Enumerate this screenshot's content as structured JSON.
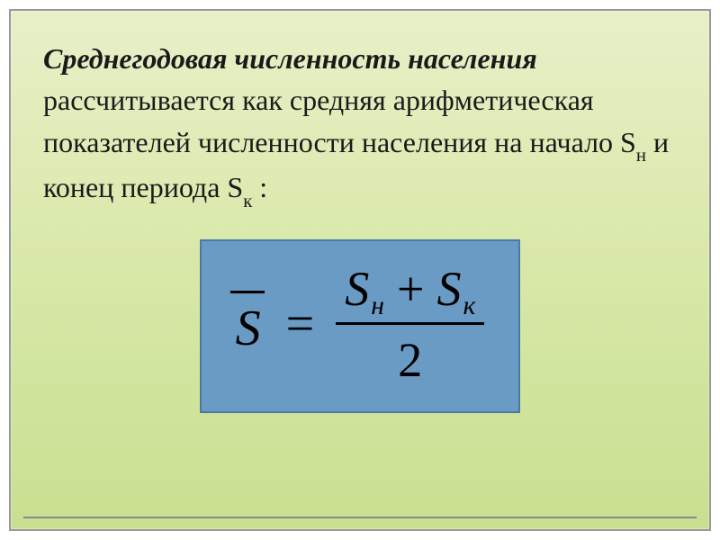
{
  "slide": {
    "background_gradient_top": "#e8f0c8",
    "background_gradient_mid": "#d8e8a8",
    "background_gradient_bottom": "#c8e090",
    "border_color": "#999999",
    "text": {
      "title_part": "Среднегодовая численность населения",
      "body_part1": " рассчитывается как средняя арифметическая показателей численности  населения на начало S",
      "sub_n": "н",
      "body_part2": " и конец периода S",
      "sub_k": "к",
      "body_part3": " :",
      "font_size_pt": 32,
      "text_color": "#1a1a1a"
    },
    "formula": {
      "box_background": "#6a9bc4",
      "box_border": "#4a7ba4",
      "lhs_symbol": "S",
      "lhs_has_overline": true,
      "equals": "=",
      "numerator_term1_base": "S",
      "numerator_term1_sub": "н",
      "plus": "+",
      "numerator_term2_base": "S",
      "numerator_term2_sub": "к",
      "denominator": "2",
      "font_size_pt": 56,
      "text_color": "#000000",
      "fraction_bar_color": "#000000"
    }
  }
}
